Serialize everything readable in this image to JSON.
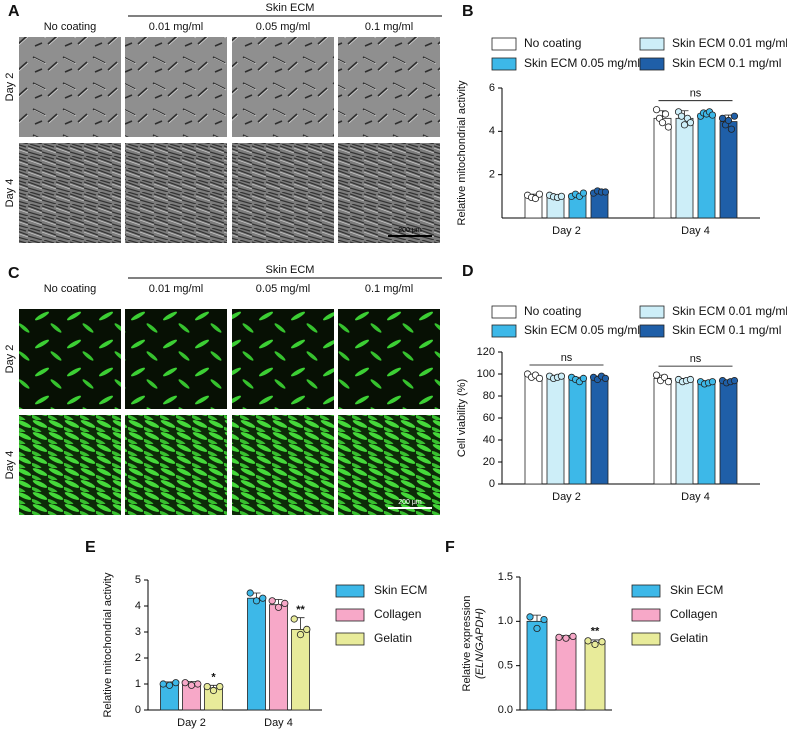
{
  "image_panels": [
    {
      "label": "A",
      "group": "Skin ECM",
      "columns": [
        "No coating",
        "0.01 mg/ml",
        "0.05 mg/ml",
        "0.1 mg/ml"
      ],
      "rows": [
        "Day 2",
        "Day 4"
      ],
      "scale_bar": "200 μm"
    },
    {
      "label": "C",
      "group": "Skin ECM",
      "columns": [
        "No coating",
        "0.01 mg/ml",
        "0.05 mg/ml",
        "0.1 mg/ml"
      ],
      "rows": [
        "Day 2",
        "Day 4"
      ],
      "scale_bar": "200 μm"
    }
  ],
  "chart_data": [
    {
      "type": "bar",
      "label": "B",
      "ylabel": [
        "Relative mitochondrial activity"
      ],
      "categories": [
        "Day 2",
        "Day 4"
      ],
      "ylim": [
        0,
        6
      ],
      "yticks": [
        2,
        4,
        6
      ],
      "group_annotations": [
        null,
        "ns"
      ],
      "series": [
        {
          "name": "No coating",
          "color": "#ffffff",
          "values": [
            1.0,
            4.6
          ],
          "errors": [
            0.1,
            0.35
          ],
          "points": [
            [
              1.05,
              0.95,
              0.9,
              1.1
            ],
            [
              5.0,
              4.6,
              4.4,
              4.8,
              4.2
            ]
          ]
        },
        {
          "name": "Skin ECM 0.01 mg/ml",
          "color": "#cdeef8",
          "values": [
            1.0,
            4.6
          ],
          "errors": [
            0.06,
            0.35
          ],
          "points": [
            [
              1.05,
              0.98,
              0.95,
              1.0
            ],
            [
              4.9,
              4.7,
              4.3,
              4.6,
              4.4
            ]
          ]
        },
        {
          "name": "Skin ECM 0.05 mg/ml",
          "color": "#3db8e8",
          "values": [
            1.05,
            4.8
          ],
          "errors": [
            0.08,
            0.12
          ],
          "points": [
            [
              1.0,
              1.1,
              1.0,
              1.15
            ],
            [
              4.7,
              4.85,
              4.8,
              4.9,
              4.75
            ]
          ]
        },
        {
          "name": "Skin ECM 0.1 mg/ml",
          "color": "#1f5fa8",
          "values": [
            1.2,
            4.45
          ],
          "errors": [
            0.06,
            0.3
          ],
          "points": [
            [
              1.15,
              1.25,
              1.2,
              1.2
            ],
            [
              4.6,
              4.3,
              4.5,
              4.1,
              4.7
            ]
          ]
        }
      ]
    },
    {
      "type": "bar",
      "label": "D",
      "ylabel": [
        "Cell viability (%)"
      ],
      "categories": [
        "Day 2",
        "Day 4"
      ],
      "ylim": [
        0,
        120
      ],
      "yticks": [
        0,
        20,
        40,
        60,
        80,
        100,
        120
      ],
      "group_annotations": [
        "ns",
        "ns"
      ],
      "series": [
        {
          "name": "No coating",
          "color": "#ffffff",
          "values": [
            98,
            96
          ],
          "errors": [
            2,
            3
          ],
          "points": [
            [
              100,
              97,
              99,
              96
            ],
            [
              99,
              94,
              97,
              93
            ]
          ]
        },
        {
          "name": "Skin ECM 0.01 mg/ml",
          "color": "#cdeef8",
          "values": [
            97,
            94
          ],
          "errors": [
            1.5,
            2
          ],
          "points": [
            [
              98,
              96,
              97,
              98
            ],
            [
              95,
              93,
              94,
              95
            ]
          ]
        },
        {
          "name": "Skin ECM 0.05 mg/ml",
          "color": "#3db8e8",
          "values": [
            95,
            92
          ],
          "errors": [
            2,
            2
          ],
          "points": [
            [
              97,
              95,
              93,
              96
            ],
            [
              93,
              91,
              92,
              93
            ]
          ]
        },
        {
          "name": "Skin ECM 0.1 mg/ml",
          "color": "#1f5fa8",
          "values": [
            96,
            93
          ],
          "errors": [
            2,
            1.5
          ],
          "points": [
            [
              97,
              95,
              98,
              96
            ],
            [
              94,
              92,
              93,
              94
            ]
          ]
        }
      ]
    },
    {
      "type": "bar",
      "label": "E",
      "ylabel": [
        "Relative mitochondrial activity"
      ],
      "categories": [
        "Day 2",
        "Day 4"
      ],
      "ylim": [
        0,
        5
      ],
      "yticks": [
        0,
        1,
        2,
        3,
        4,
        5
      ],
      "series": [
        {
          "name": "Skin ECM",
          "color": "#3db8e8",
          "values": [
            1.0,
            4.3
          ],
          "errors": [
            0.08,
            0.2
          ],
          "points": [
            [
              1.0,
              0.95,
              1.05
            ],
            [
              4.5,
              4.2,
              4.3
            ]
          ]
        },
        {
          "name": "Collagen",
          "color": "#f7a8c8",
          "values": [
            1.0,
            4.05
          ],
          "errors": [
            0.1,
            0.2
          ],
          "points": [
            [
              1.05,
              0.95,
              1.0
            ],
            [
              4.2,
              3.95,
              4.1
            ]
          ]
        },
        {
          "name": "Gelatin",
          "color": "#e8eb9a",
          "values": [
            0.85,
            3.1
          ],
          "errors": [
            0.1,
            0.45
          ],
          "points": [
            [
              0.9,
              0.75,
              0.9
            ],
            [
              3.5,
              2.9,
              3.1
            ]
          ],
          "annotations": [
            "*",
            "**"
          ]
        }
      ]
    },
    {
      "type": "bar",
      "label": "F",
      "ylabel": [
        "Relative expression",
        "(ELN/GAPDH)"
      ],
      "categories": [
        null
      ],
      "ylim": [
        0,
        1.5
      ],
      "yticks": [
        {
          "value": 0,
          "label": "0.0"
        },
        {
          "value": 0.5,
          "label": "0.5"
        },
        {
          "value": 1,
          "label": "1.0"
        },
        {
          "value": 1.5,
          "label": "1.5"
        }
      ],
      "series": [
        {
          "name": "Skin ECM",
          "color": "#3db8e8",
          "values": [
            1.0
          ],
          "errors": [
            0.07
          ],
          "points": [
            [
              1.05,
              0.92,
              1.02
            ]
          ]
        },
        {
          "name": "Collagen",
          "color": "#f7a8c8",
          "values": [
            0.82
          ],
          "errors": [
            0.02
          ],
          "points": [
            [
              0.82,
              0.81,
              0.83
            ]
          ]
        },
        {
          "name": "Gelatin",
          "color": "#e8eb9a",
          "values": [
            0.76
          ],
          "errors": [
            0.03
          ],
          "points": [
            [
              0.78,
              0.74,
              0.77
            ]
          ],
          "annotations": [
            "**"
          ]
        }
      ]
    }
  ]
}
